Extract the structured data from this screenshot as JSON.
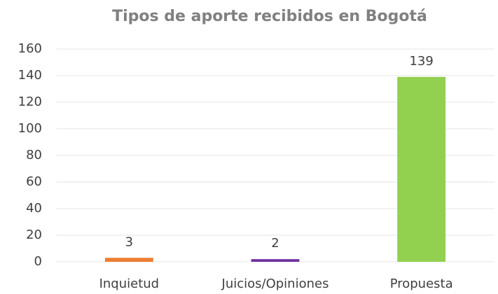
{
  "chart_data": {
    "type": "bar",
    "title": "Tipos de aporte recibidos en Bogotá",
    "categories": [
      "Inquietud",
      "Juicios/Opiniones",
      "Propuesta"
    ],
    "values": [
      3,
      2,
      139
    ],
    "colors": [
      "#ed7d31",
      "#7030a0",
      "#92d050"
    ],
    "ylim": [
      0,
      160
    ],
    "yticks": [
      0,
      20,
      40,
      60,
      80,
      100,
      120,
      140,
      160
    ],
    "grid": true
  }
}
